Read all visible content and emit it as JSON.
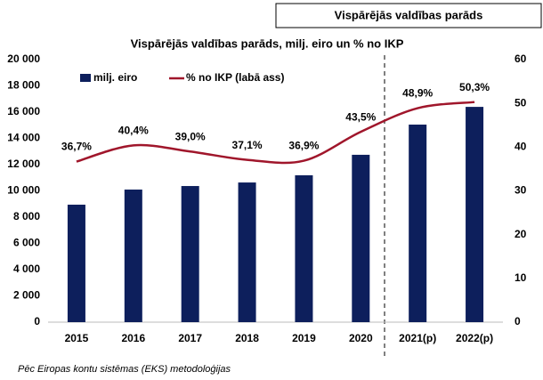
{
  "chart_data": {
    "type": "bar_line",
    "header": "Vispārējās valdības parāds",
    "title": "Vispārējās valdības parāds, milj. eiro un % no IKP",
    "footnote": "Pēc Eiropas kontu sistēmas (EKS) metodoloģijas",
    "categories": [
      "2015",
      "2016",
      "2017",
      "2018",
      "2019",
      "2020",
      "2021(p)",
      "2022(p)"
    ],
    "series": [
      {
        "name": "milj. eiro",
        "color": "#0d1f5c",
        "values": [
          8950,
          10100,
          10370,
          10640,
          11190,
          12750,
          15050,
          16400
        ]
      },
      {
        "name": "% no IKP (labā ass)",
        "color": "#a0162b",
        "axis": "y2",
        "values": [
          36.7,
          40.4,
          39.0,
          37.1,
          36.9,
          43.5,
          48.9,
          50.3
        ],
        "value_labels": [
          "36,7%",
          "40,4%",
          "39,0%",
          "37,1%",
          "36,9%",
          "43,5%",
          "48,9%",
          "50,3%"
        ]
      }
    ],
    "ylim": [
      0,
      20000
    ],
    "yticks": [
      {
        "value": 0,
        "label": "0"
      },
      {
        "value": 2000,
        "label": "2 000"
      },
      {
        "value": 4000,
        "label": "4 000"
      },
      {
        "value": 6000,
        "label": "6 000"
      },
      {
        "value": 8000,
        "label": "8 000"
      },
      {
        "value": 10000,
        "label": "10 000"
      },
      {
        "value": 12000,
        "label": "12 000"
      },
      {
        "value": 14000,
        "label": "14 000"
      },
      {
        "value": 16000,
        "label": "16 000"
      },
      {
        "value": 18000,
        "label": "18 000"
      },
      {
        "value": 20000,
        "label": "20 000"
      }
    ],
    "y2lim": [
      0,
      60
    ],
    "y2ticks": [
      0,
      10,
      20,
      30,
      40,
      50,
      60
    ]
  }
}
